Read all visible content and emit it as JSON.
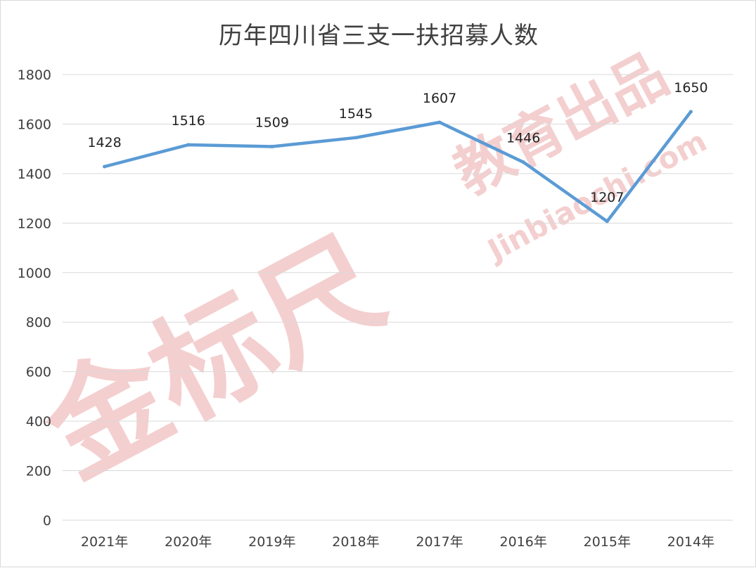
{
  "chart_data": {
    "type": "line",
    "title": "历年四川省三支一扶招募人数",
    "categories": [
      "2021年",
      "2020年",
      "2019年",
      "2018年",
      "2017年",
      "2016年",
      "2015年",
      "2014年"
    ],
    "series": [
      {
        "values": [
          1428,
          1516,
          1509,
          1545,
          1607,
          1446,
          1207,
          1650
        ],
        "color": "#5b9bd5"
      }
    ],
    "data_labels": [
      "1428",
      "1516",
      "1509",
      "1545",
      "1607",
      "1446",
      "1207",
      "1650"
    ],
    "ylim": [
      0,
      1800
    ],
    "y_ticks": [
      0,
      200,
      400,
      600,
      800,
      1000,
      1200,
      1400,
      1600,
      1800
    ],
    "y_tick_labels": [
      "0",
      "200",
      "400",
      "600",
      "800",
      "1000",
      "1200",
      "1400",
      "1600",
      "1800"
    ],
    "grid": true,
    "legend": "none"
  },
  "watermark": {
    "main_text": "金标尺",
    "sub_text": "教育出品",
    "url_text": "Jinbiaochi.com",
    "color": "#f4cfcf"
  }
}
